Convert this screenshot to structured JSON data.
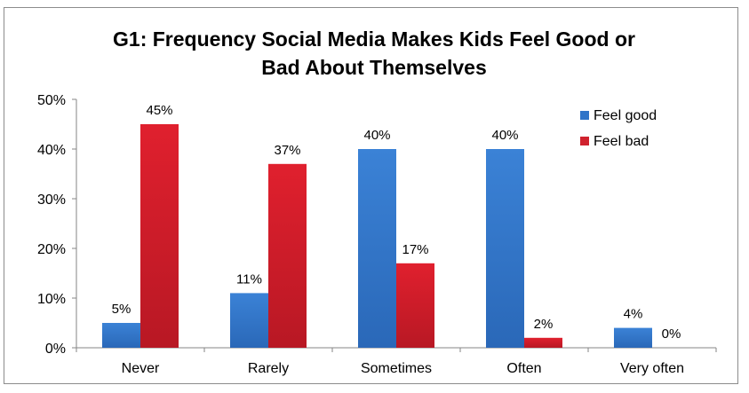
{
  "chart_data": {
    "type": "bar",
    "title_lines": [
      "G1:  Frequency Social Media Makes Kids Feel Good or",
      "Bad About Themselves"
    ],
    "categories": [
      "Never",
      "Rarely",
      "Sometimes",
      "Often",
      "Very often"
    ],
    "series": [
      {
        "name": "Feel good",
        "values": [
          5,
          11,
          40,
          40,
          4
        ],
        "labels": [
          "5%",
          "11%",
          "40%",
          "40%",
          "4%"
        ],
        "color": "#2f74c8"
      },
      {
        "name": "Feel bad",
        "values": [
          45,
          37,
          17,
          2,
          0
        ],
        "labels": [
          "45%",
          "37%",
          "17%",
          "2%",
          "0%"
        ],
        "color": "#d0222e"
      }
    ],
    "y_ticks": [
      "0%",
      "10%",
      "20%",
      "30%",
      "40%",
      "50%"
    ],
    "ylim": [
      0,
      50
    ],
    "grid": false,
    "legend": "top-right"
  }
}
